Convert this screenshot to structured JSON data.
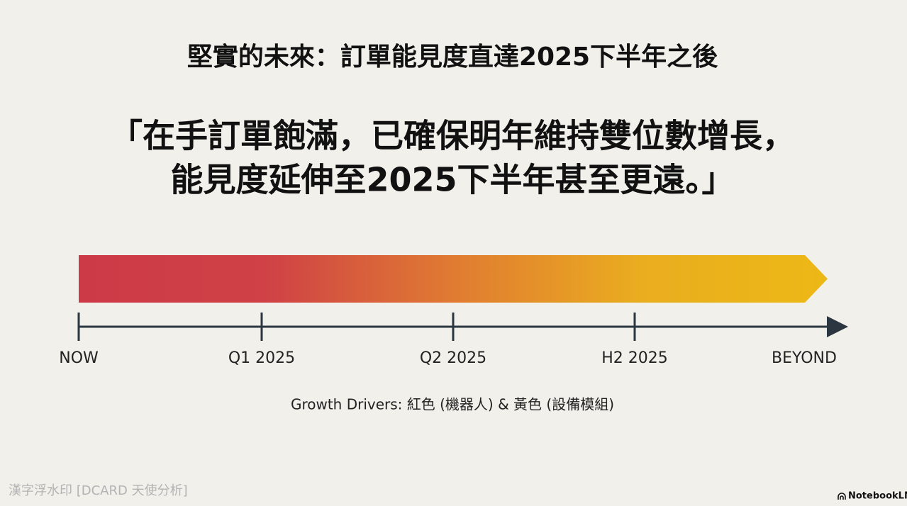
{
  "header": {
    "title": "堅實的未來：訂單能見度直達2025下半年之後"
  },
  "quote": {
    "lines": [
      "「在手訂單飽滿，已確保明年維持雙位數增長，",
      "能見度延伸至2025下半年甚至更遠。」"
    ]
  },
  "timeline": {
    "labels": [
      "NOW",
      "Q1 2025",
      "Q2 2025",
      "H2 2025",
      "BEYOND"
    ]
  },
  "caption": "Growth Drivers: 紅色 (機器人) & 黃色 (設備模組)",
  "footer": {
    "watermark": "漢字浮水印 [DCARD 天使分析]",
    "brand": "NotebookLM"
  }
}
